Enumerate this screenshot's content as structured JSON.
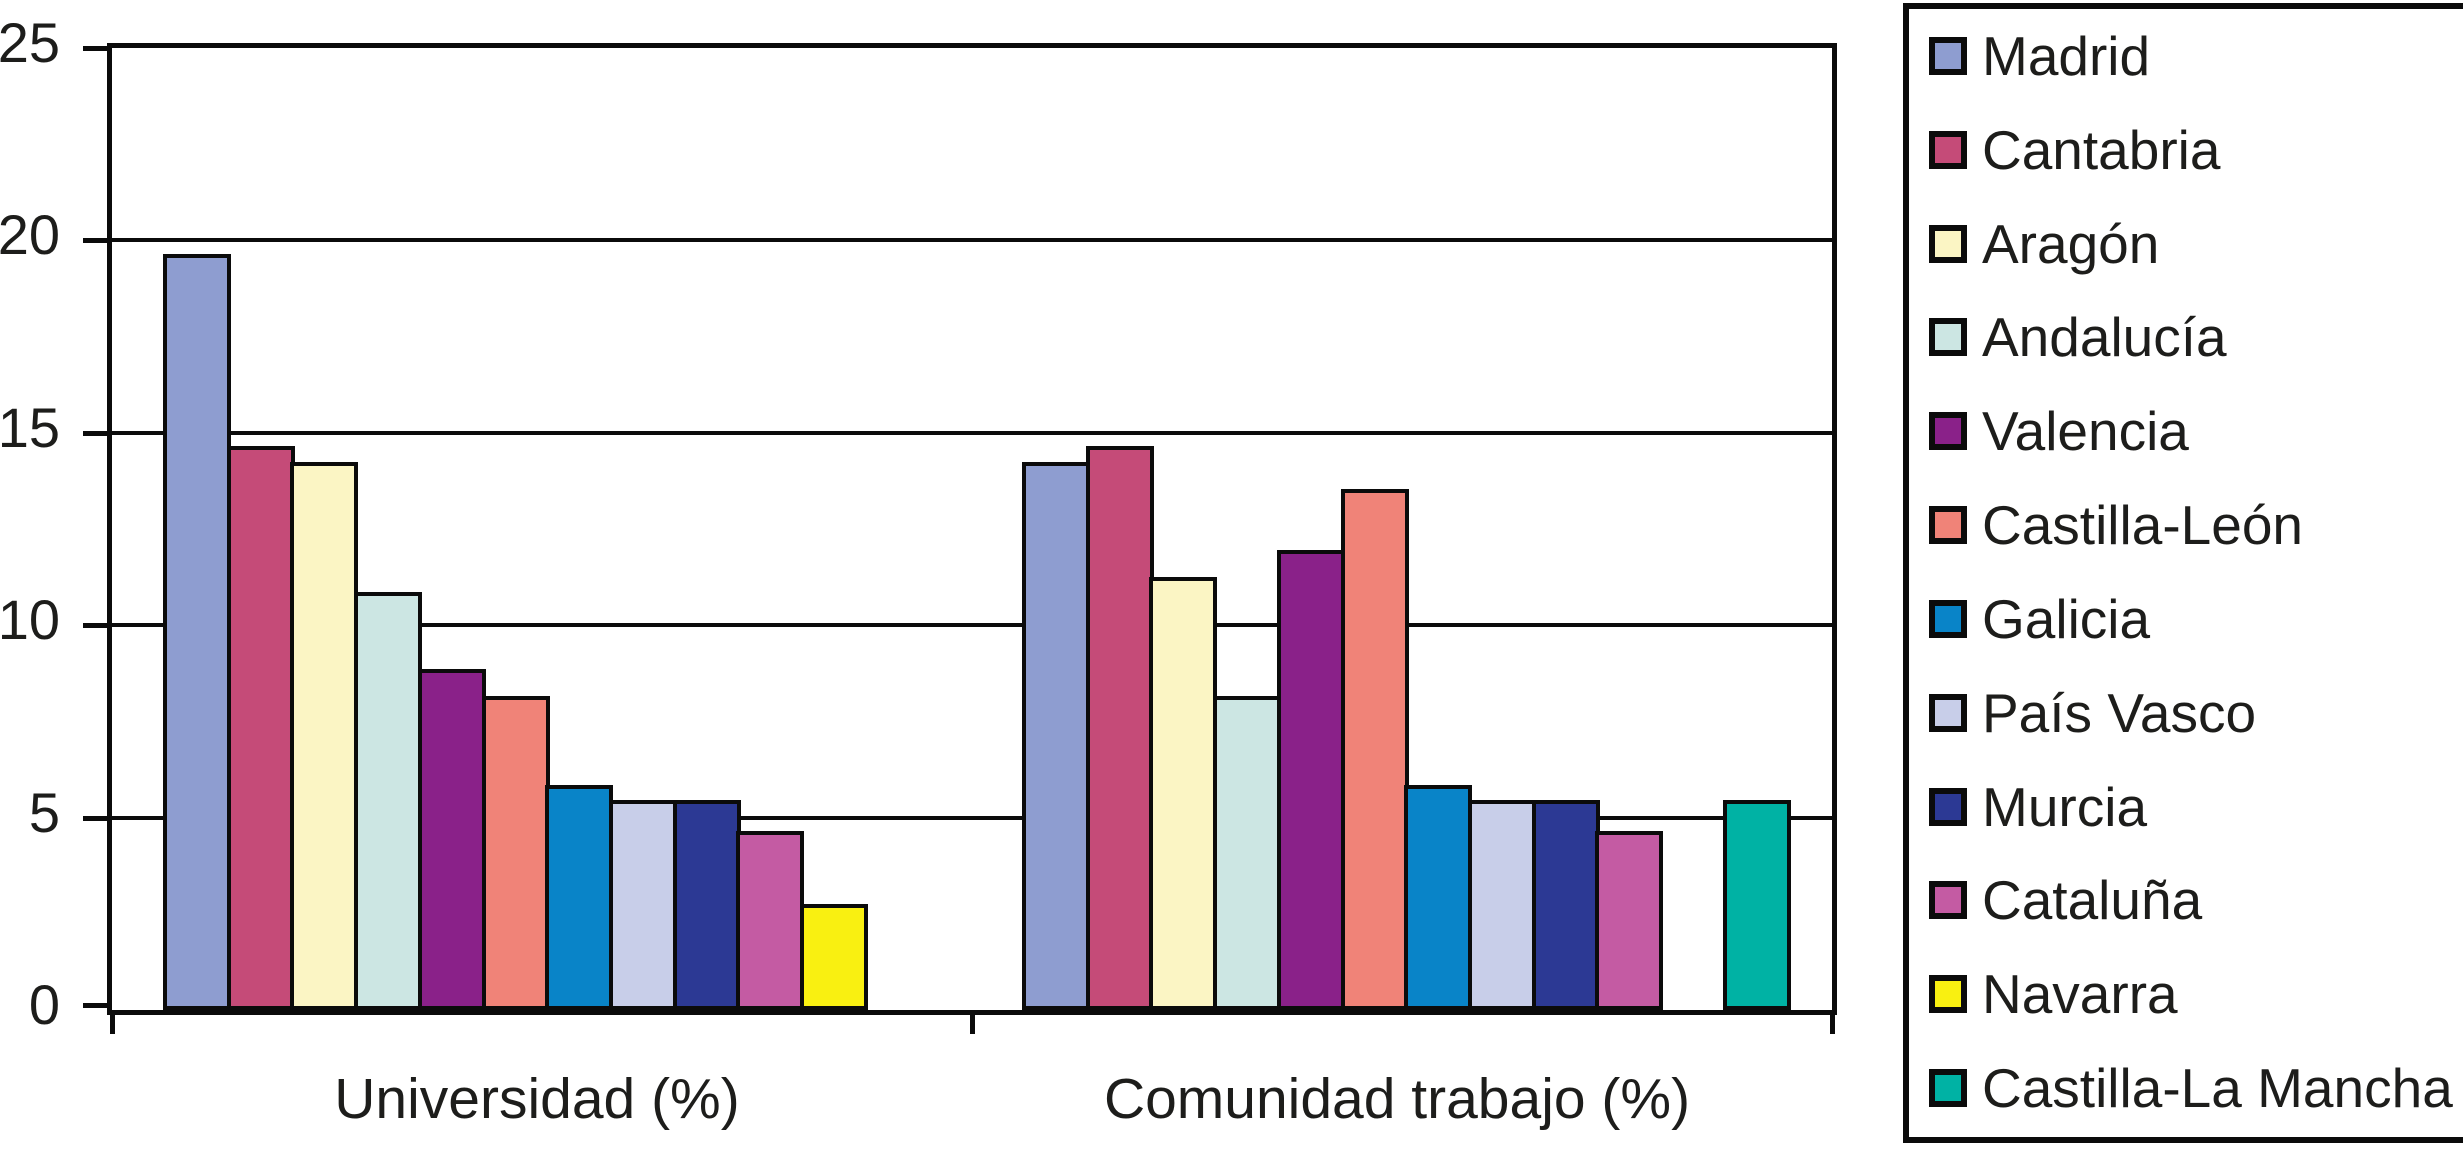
{
  "chart_data": {
    "type": "bar",
    "title": "",
    "categories": [
      "Universidad (%)",
      "Comunidad trabajo (%)"
    ],
    "series": [
      {
        "name": "Madrid",
        "color": "#8E9DD0",
        "values": [
          19.6,
          14.2
        ]
      },
      {
        "name": "Cantabria",
        "color": "#C54B78",
        "values": [
          14.6,
          14.6
        ]
      },
      {
        "name": "Aragón",
        "color": "#FBF5C4",
        "values": [
          14.2,
          11.2
        ]
      },
      {
        "name": "Andalucía",
        "color": "#CCE6E3",
        "values": [
          10.8,
          8.1
        ]
      },
      {
        "name": "Valencia",
        "color": "#8A2189",
        "values": [
          8.8,
          11.9
        ]
      },
      {
        "name": "Castilla-León",
        "color": "#F08378",
        "values": [
          8.1,
          13.5
        ]
      },
      {
        "name": "Galicia",
        "color": "#0984C8",
        "values": [
          5.8,
          5.8
        ]
      },
      {
        "name": "País Vasco",
        "color": "#C8CEE9",
        "values": [
          5.4,
          5.4
        ]
      },
      {
        "name": "Murcia",
        "color": "#2C3994",
        "values": [
          5.4,
          5.4
        ]
      },
      {
        "name": "Cataluña",
        "color": "#C45BA3",
        "values": [
          4.6,
          4.6
        ]
      },
      {
        "name": "Navarra",
        "color": "#F9F011",
        "values": [
          2.7,
          null
        ]
      },
      {
        "name": "Castilla-La Mancha",
        "color": "#00B2A4",
        "values": [
          null,
          5.4
        ]
      }
    ],
    "ylim": [
      0,
      25
    ],
    "yticks": [
      0,
      5,
      10,
      15,
      20,
      25
    ],
    "grid": true,
    "legend_position": "right",
    "axis_color": "#0b0b0b"
  }
}
